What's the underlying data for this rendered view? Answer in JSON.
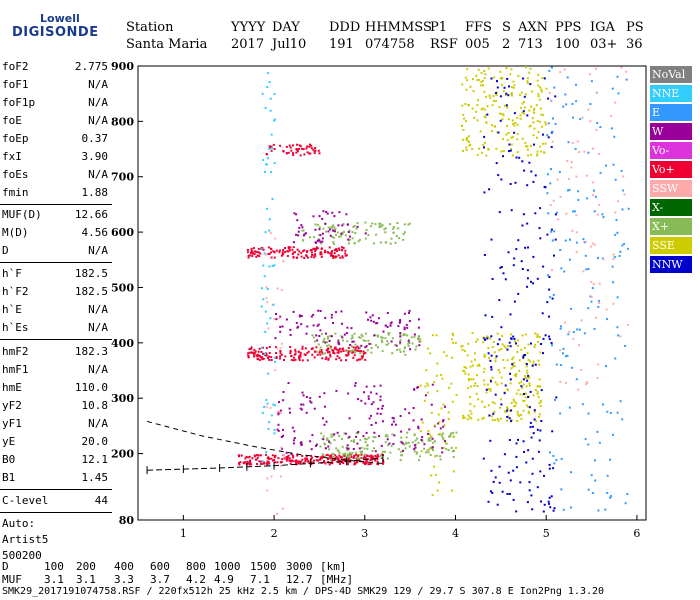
{
  "logo": {
    "line1": "Lowell",
    "line2": "DIGISONDE"
  },
  "header": {
    "labels": [
      "Station",
      "YYYY",
      "DAY",
      "DDD",
      "HHMMSS",
      "P1",
      "FFS",
      "S",
      "AXN",
      "PPS",
      "IGA",
      "PS"
    ],
    "values": [
      "Santa Maria",
      "2017",
      "Jul10",
      "191",
      "074758",
      "RSF",
      "005",
      "2",
      "713",
      "100",
      "03+",
      "36"
    ]
  },
  "params_group1": [
    {
      "name": "foF2",
      "value": "2.775"
    },
    {
      "name": "foF1",
      "value": "N/A"
    },
    {
      "name": "foF1p",
      "value": "N/A"
    },
    {
      "name": "foE",
      "value": "N/A"
    },
    {
      "name": "foEp",
      "value": "0.37"
    },
    {
      "name": "fxI",
      "value": "3.90"
    },
    {
      "name": "foEs",
      "value": "N/A"
    },
    {
      "name": "fmin",
      "value": "1.88"
    }
  ],
  "params_group2": [
    {
      "name": "MUF(D)",
      "value": "12.66"
    },
    {
      "name": "M(D)",
      "value": "4.56"
    },
    {
      "name": "D",
      "value": "N/A"
    }
  ],
  "params_group3": [
    {
      "name": "h`F",
      "value": "182.5"
    },
    {
      "name": "h`F2",
      "value": "182.5"
    },
    {
      "name": "h`E",
      "value": "N/A"
    },
    {
      "name": "h`Es",
      "value": "N/A"
    }
  ],
  "params_group4": [
    {
      "name": "hmF2",
      "value": "182.3"
    },
    {
      "name": "hmF1",
      "value": "N/A"
    },
    {
      "name": "hmE",
      "value": "110.0"
    },
    {
      "name": "yF2",
      "value": "10.8"
    },
    {
      "name": "yF1",
      "value": "N/A"
    },
    {
      "name": "yE",
      "value": "20.0"
    },
    {
      "name": "B0",
      "value": "12.1"
    },
    {
      "name": "B1",
      "value": "1.45"
    }
  ],
  "clevel": {
    "label": "C-level",
    "value": "44"
  },
  "autoscale": {
    "line1": "Auto:",
    "line2": "Artist5",
    "line3": "500200"
  },
  "legend": [
    {
      "label": "NoVal",
      "color": "#808080"
    },
    {
      "label": "NNE",
      "color": "#33ccff"
    },
    {
      "label": "E",
      "color": "#3399ff"
    },
    {
      "label": "W",
      "color": "#990099"
    },
    {
      "label": "Vo-",
      "color": "#dd33dd"
    },
    {
      "label": "Vo+",
      "color": "#ee0033"
    },
    {
      "label": "SSW",
      "color": "#ffaaaa"
    },
    {
      "label": "X-",
      "color": "#006600"
    },
    {
      "label": "X+",
      "color": "#88bb55"
    },
    {
      "label": "SSE",
      "color": "#cccc00"
    },
    {
      "label": "NNW",
      "color": "#0000cc"
    }
  ],
  "footer": {
    "row_d_label": "D",
    "row_d_values": [
      "100",
      "200",
      "400",
      "600",
      "800",
      "1000",
      "1500",
      "3000"
    ],
    "row_d_unit": "[km]",
    "row_muf_label": "MUF",
    "row_muf_values": [
      "3.1",
      "3.1",
      "3.3",
      "3.7",
      "4.2",
      "4.9",
      "7.1",
      "12.7"
    ],
    "row_muf_unit": "[MHz]",
    "file_line": "SMK29_2017191074758.RSF / 220fx512h 25 kHz 2.5 km / DPS-4D SMK29 129 / 29.7 S 307.8 E Ion2Png 1.3.20"
  },
  "chart_data": {
    "type": "scatter",
    "title": "",
    "xlabel": "",
    "ylabel": "",
    "xlim": [
      0.5,
      6.1
    ],
    "ylim": [
      80,
      900
    ],
    "xticks": [
      1,
      2,
      3,
      4,
      5,
      6
    ],
    "yticks": [
      80,
      200,
      300,
      400,
      500,
      600,
      700,
      800,
      900
    ],
    "series": [
      {
        "name": "Vo+",
        "color": "#ee0033",
        "clusters": [
          {
            "x": [
              1.6,
              3.2
            ],
            "y": [
              182,
              200
            ],
            "n": 260
          },
          {
            "x": [
              1.7,
              3.0
            ],
            "y": [
              370,
              395
            ],
            "n": 180
          },
          {
            "x": [
              1.7,
              2.8
            ],
            "y": [
              555,
              575
            ],
            "n": 140
          },
          {
            "x": [
              1.9,
              2.5
            ],
            "y": [
              740,
              760
            ],
            "n": 50
          }
        ]
      },
      {
        "name": "X+",
        "color": "#88bb55",
        "clusters": [
          {
            "x": [
              2.5,
              4.0
            ],
            "y": [
              190,
              240
            ],
            "n": 160
          },
          {
            "x": [
              2.4,
              3.6
            ],
            "y": [
              380,
              420
            ],
            "n": 100
          },
          {
            "x": [
              2.3,
              3.5
            ],
            "y": [
              580,
              620
            ],
            "n": 90
          }
        ]
      },
      {
        "name": "W",
        "color": "#990099",
        "clusters": [
          {
            "x": [
              2.0,
              3.9
            ],
            "y": [
              200,
              330
            ],
            "n": 150
          },
          {
            "x": [
              2.0,
              3.6
            ],
            "y": [
              390,
              460
            ],
            "n": 100
          },
          {
            "x": [
              2.2,
              3.0
            ],
            "y": [
              580,
              640
            ],
            "n": 50
          }
        ]
      },
      {
        "name": "SSE",
        "color": "#cccc00",
        "clusters": [
          {
            "x": [
              4.05,
              4.95
            ],
            "y": [
              260,
              420
            ],
            "n": 220
          },
          {
            "x": [
              4.05,
              5.0
            ],
            "y": [
              740,
              900
            ],
            "n": 200
          },
          {
            "x": [
              3.6,
              4.0
            ],
            "y": [
              120,
              420
            ],
            "n": 60
          }
        ]
      },
      {
        "name": "NNW",
        "color": "#0000cc",
        "clusters": [
          {
            "x": [
              4.3,
              5.1
            ],
            "y": [
              90,
              420
            ],
            "n": 120
          },
          {
            "x": [
              4.3,
              5.1
            ],
            "y": [
              400,
              880
            ],
            "n": 110
          }
        ]
      },
      {
        "name": "E",
        "color": "#3399ff",
        "clusters": [
          {
            "x": [
              5.0,
              5.9
            ],
            "y": [
              90,
              900
            ],
            "n": 160
          }
        ]
      },
      {
        "name": "SSW",
        "color": "#ffaaaa",
        "clusters": [
          {
            "x": [
              5.0,
              5.9
            ],
            "y": [
              300,
              900
            ],
            "n": 80
          },
          {
            "x": [
              1.9,
              2.1
            ],
            "y": [
              90,
              600
            ],
            "n": 30
          }
        ]
      },
      {
        "name": "NNE",
        "color": "#33ccff",
        "clusters": [
          {
            "x": [
              1.85,
              2.0
            ],
            "y": [
              180,
              900
            ],
            "n": 60
          }
        ]
      }
    ],
    "profile_trace": {
      "x": [
        0.6,
        1.0,
        1.4,
        1.7,
        2.0,
        2.4,
        2.8,
        3.2
      ],
      "y": [
        170,
        172,
        174,
        176,
        178,
        182,
        186,
        192
      ]
    },
    "extrapolation_curve": {
      "x": [
        0.6,
        1.2,
        1.8,
        2.3,
        2.8,
        3.2
      ],
      "y": [
        258,
        232,
        212,
        198,
        188,
        182
      ]
    }
  }
}
